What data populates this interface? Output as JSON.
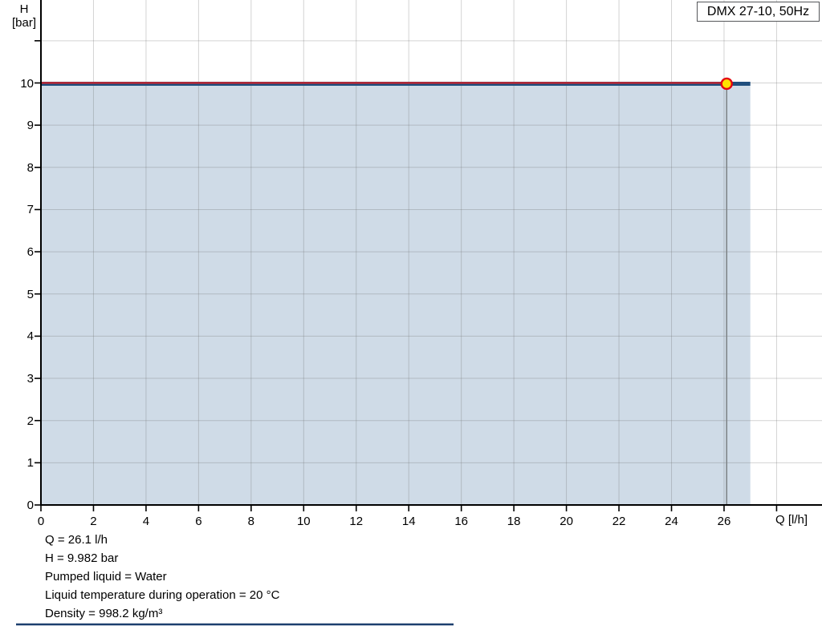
{
  "title_box": {
    "label": "DMX 27-10, 50Hz"
  },
  "axes": {
    "y_unit_line1": "H",
    "y_unit_line2": "[bar]",
    "x_unit": "Q [l/h]",
    "y_ticks_labeled": [
      0,
      1,
      2,
      3,
      4,
      5,
      6,
      7,
      8,
      9,
      10
    ],
    "y_ticks_unlabeled": [
      11
    ],
    "x_ticks_labeled": [
      0,
      2,
      4,
      6,
      8,
      10,
      12,
      14,
      16,
      18,
      20,
      22,
      24,
      26
    ],
    "x_ticks_unlabeled": [
      28
    ]
  },
  "chart_data": {
    "type": "area",
    "title": "DMX 27-10, 50Hz",
    "xlabel": "Q [l/h]",
    "ylabel": "H [bar]",
    "xlim": [
      0,
      29.7
    ],
    "ylim": [
      0,
      11.97
    ],
    "x_tick_step": 2,
    "y_tick_step": 1,
    "grid": true,
    "series": [
      {
        "name": "pump-max-curve",
        "x": [
          0,
          27.0
        ],
        "y": [
          9.982,
          9.982
        ],
        "filled_below": true
      },
      {
        "name": "operating-curve",
        "x": [
          0,
          26.1
        ],
        "y": [
          9.982,
          9.982
        ],
        "filled_below": false
      }
    ],
    "operating_point": {
      "q": 26.1,
      "h": 9.982
    }
  },
  "colors": {
    "curve_blue": "#1f4e7d",
    "operating_red": "#d2232a",
    "marker_fill": "#ffe400",
    "marker_stroke": "#e30613",
    "area_fill": "#cfdbe7",
    "grid_line": "rgba(110,110,110,0.30)",
    "drop_line": "#7f8488",
    "axis": "#000000",
    "footer_rule": "#1b3e6e"
  },
  "annotations": {
    "lines": [
      "Q = 26.1 l/h",
      "H = 9.982 bar",
      "Pumped liquid = Water",
      "Liquid temperature during operation = 20 °C",
      "Density = 998.2 kg/m³"
    ]
  }
}
